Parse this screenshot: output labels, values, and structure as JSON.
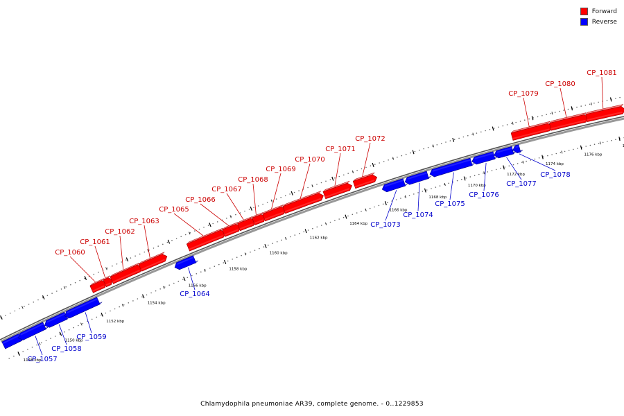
{
  "title": "Chlamydophila pneumoniae AR39, complete genome. - 0..1229853",
  "legend": {
    "forward_label": "Forward",
    "reverse_label": "Reverse",
    "forward_color": "#ff0000",
    "reverse_color": "#0000ff"
  },
  "colors": {
    "forward_label": "#cc0000",
    "reverse_label": "#0000cc"
  },
  "ticks": [
    "1148 kbp",
    "1150 kbp",
    "1152 kbp",
    "1154 kbp",
    "1156 kbp",
    "1158 kbp",
    "1160 kbp",
    "1162 kbp",
    "1164 kbp",
    "1166 kbp",
    "1168 kbp",
    "1170 kbp",
    "1172 kbp",
    "1174 kbp",
    "1176 kbp",
    "1178 kbp"
  ],
  "genes": [
    {
      "label": "CP_1057",
      "strand": "reverse"
    },
    {
      "label": "CP_1058",
      "strand": "reverse"
    },
    {
      "label": "CP_1059",
      "strand": "reverse"
    },
    {
      "label": "CP_1060",
      "strand": "forward"
    },
    {
      "label": "CP_1061",
      "strand": "forward"
    },
    {
      "label": "CP_1062",
      "strand": "forward"
    },
    {
      "label": "CP_1063",
      "strand": "forward"
    },
    {
      "label": "CP_1064",
      "strand": "reverse"
    },
    {
      "label": "CP_1065",
      "strand": "forward"
    },
    {
      "label": "CP_1066",
      "strand": "forward"
    },
    {
      "label": "CP_1067",
      "strand": "forward"
    },
    {
      "label": "CP_1068",
      "strand": "forward"
    },
    {
      "label": "CP_1069",
      "strand": "forward"
    },
    {
      "label": "CP_1070",
      "strand": "forward"
    },
    {
      "label": "CP_1071",
      "strand": "forward"
    },
    {
      "label": "CP_1072",
      "strand": "forward"
    },
    {
      "label": "CP_1073",
      "strand": "reverse"
    },
    {
      "label": "CP_1074",
      "strand": "reverse"
    },
    {
      "label": "CP_1075",
      "strand": "reverse"
    },
    {
      "label": "CP_1076",
      "strand": "reverse"
    },
    {
      "label": "CP_1077",
      "strand": "reverse"
    },
    {
      "label": "CP_1078",
      "strand": "reverse"
    },
    {
      "label": "CP_1079",
      "strand": "forward"
    },
    {
      "label": "CP_1080",
      "strand": "forward"
    },
    {
      "label": "CP_1081",
      "strand": "forward"
    }
  ]
}
